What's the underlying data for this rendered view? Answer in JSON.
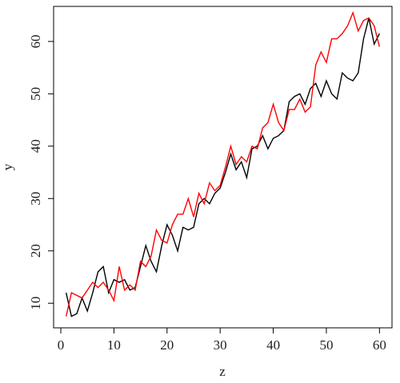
{
  "chart_data": {
    "type": "line",
    "xlabel": "z",
    "ylabel": "y",
    "x": [
      1,
      2,
      3,
      4,
      5,
      6,
      7,
      8,
      9,
      10,
      11,
      12,
      13,
      14,
      15,
      16,
      17,
      18,
      19,
      20,
      21,
      22,
      23,
      24,
      25,
      26,
      27,
      28,
      29,
      30,
      31,
      32,
      33,
      34,
      35,
      36,
      37,
      38,
      39,
      40,
      41,
      42,
      43,
      44,
      45,
      46,
      47,
      48,
      49,
      50,
      51,
      52,
      53,
      54,
      55,
      56,
      57,
      58,
      59,
      60
    ],
    "series": [
      {
        "color": "#000000",
        "values": [
          12,
          7.5,
          8,
          11,
          8.5,
          12,
          16,
          17,
          12,
          14.5,
          14,
          14.5,
          12.5,
          13,
          17,
          21,
          18,
          16,
          21,
          25,
          23,
          20,
          24.5,
          24,
          24.5,
          29,
          30,
          29,
          31,
          32,
          35,
          38.5,
          35.5,
          37,
          34,
          39.5,
          40,
          42,
          39.5,
          41.5,
          42,
          43,
          48.5,
          49.5,
          50,
          48,
          51,
          52,
          49.5,
          52.5,
          50,
          49,
          54,
          53,
          52.5,
          54,
          60.5,
          64.5,
          59.5,
          61.5
        ]
      },
      {
        "color": "#ff0000",
        "values": [
          7.5,
          12,
          11.5,
          11,
          12.5,
          14,
          13,
          14,
          12.5,
          10.5,
          17,
          12.5,
          13.5,
          12.5,
          18,
          17,
          19,
          24,
          22,
          21.5,
          25,
          27,
          27,
          30,
          26.5,
          31,
          29,
          33,
          31.5,
          32.5,
          36,
          40,
          36.5,
          38,
          37,
          40,
          39.5,
          43.5,
          44.5,
          48,
          44.5,
          43,
          47,
          47,
          49,
          46.5,
          47.5,
          55.5,
          58,
          56,
          60.5,
          60.5,
          61.5,
          63,
          65.5,
          62,
          64,
          64.5,
          63,
          59
        ]
      }
    ],
    "xlim": [
      -1.36,
      62.36
    ],
    "ylim": [
      5.3,
      66.7
    ],
    "xticks": [
      0,
      10,
      20,
      30,
      40,
      50,
      60
    ],
    "yticks": [
      10,
      20,
      30,
      40,
      50,
      60
    ]
  }
}
